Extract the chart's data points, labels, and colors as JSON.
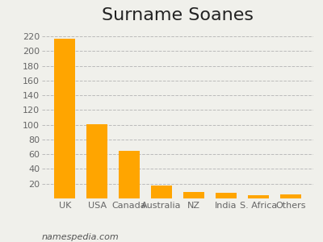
{
  "title": "Surname Soanes",
  "categories": [
    "UK",
    "USA",
    "Canada",
    "Australia",
    "NZ",
    "India",
    "S. Africa",
    "Others"
  ],
  "values": [
    217,
    101,
    65,
    17,
    9,
    8,
    4,
    5
  ],
  "bar_color": "#FFA500",
  "ylim": [
    0,
    230
  ],
  "yticks": [
    20,
    40,
    60,
    80,
    100,
    120,
    140,
    160,
    180,
    200,
    220
  ],
  "background_color": "#f0f0eb",
  "grid_color": "#bbbbbb",
  "title_fontsize": 16,
  "tick_fontsize": 8,
  "footer_text": "namespedia.com",
  "footer_fontsize": 8
}
